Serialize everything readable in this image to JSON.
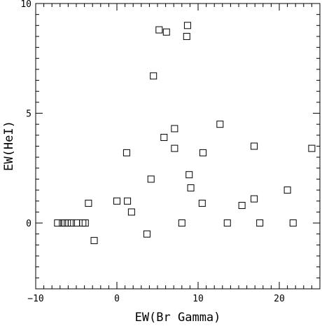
{
  "chart_data": {
    "type": "scatter",
    "title": "",
    "xlabel": "EW(Br Gamma)",
    "ylabel": "EW(HeI)",
    "xlim": [
      -10,
      25
    ],
    "ylim": [
      -3,
      10
    ],
    "xticks": [
      -10,
      0,
      10,
      20
    ],
    "yticks": [
      0,
      5,
      10
    ],
    "grid": false,
    "marker": "open-square",
    "points": [
      {
        "x": -7.3,
        "y": 0
      },
      {
        "x": -6.7,
        "y": 0
      },
      {
        "x": -6.4,
        "y": 0
      },
      {
        "x": -6.1,
        "y": 0
      },
      {
        "x": -5.6,
        "y": 0
      },
      {
        "x": -5.0,
        "y": 0
      },
      {
        "x": -4.2,
        "y": 0
      },
      {
        "x": -3.9,
        "y": 0
      },
      {
        "x": -3.5,
        "y": 0.9
      },
      {
        "x": -2.8,
        "y": -0.8
      },
      {
        "x": 0.0,
        "y": 1.0
      },
      {
        "x": 1.2,
        "y": 3.2
      },
      {
        "x": 1.3,
        "y": 1.0
      },
      {
        "x": 1.8,
        "y": 0.5
      },
      {
        "x": 3.7,
        "y": -0.5
      },
      {
        "x": 4.2,
        "y": 2.0
      },
      {
        "x": 4.5,
        "y": 6.7
      },
      {
        "x": 5.2,
        "y": 8.8
      },
      {
        "x": 5.8,
        "y": 3.9
      },
      {
        "x": 6.1,
        "y": 8.7
      },
      {
        "x": 7.1,
        "y": 4.3
      },
      {
        "x": 7.1,
        "y": 3.4
      },
      {
        "x": 8.0,
        "y": 0
      },
      {
        "x": 8.6,
        "y": 8.5
      },
      {
        "x": 8.7,
        "y": 9.0
      },
      {
        "x": 8.9,
        "y": 2.2
      },
      {
        "x": 9.1,
        "y": 1.6
      },
      {
        "x": 10.5,
        "y": 0.9
      },
      {
        "x": 10.6,
        "y": 3.2
      },
      {
        "x": 12.7,
        "y": 4.5
      },
      {
        "x": 13.6,
        "y": 0
      },
      {
        "x": 15.4,
        "y": 0.8
      },
      {
        "x": 16.9,
        "y": 3.5
      },
      {
        "x": 16.9,
        "y": 1.1
      },
      {
        "x": 17.6,
        "y": 0
      },
      {
        "x": 21.0,
        "y": 1.5
      },
      {
        "x": 21.7,
        "y": 0
      },
      {
        "x": 24.0,
        "y": 3.4
      }
    ]
  }
}
